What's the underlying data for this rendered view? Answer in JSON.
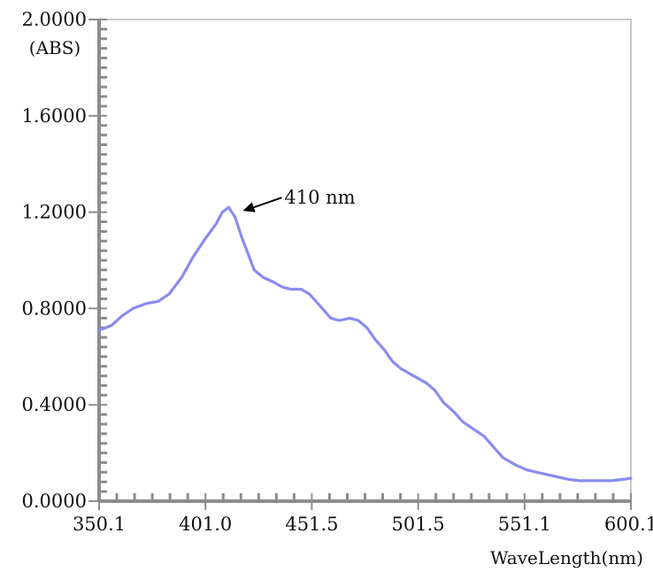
{
  "chart_data": {
    "type": "line",
    "title": "",
    "xlabel": "WaveLength(nm)",
    "ylabel": "(ABS)",
    "xlim": [
      350.1,
      600.1
    ],
    "ylim": [
      0.0,
      2.0
    ],
    "grid": false,
    "x_ticks": [
      "350.1",
      "401.0",
      "451.5",
      "501.5",
      "551.1",
      "600.1"
    ],
    "y_ticks": [
      "0.0000",
      "0.4000",
      "0.8000",
      "1.2000",
      "1.6000",
      "2.0000"
    ],
    "series": [
      {
        "name": "",
        "color": "#8a8cf0",
        "points": [
          [
            350.1,
            0.71
          ],
          [
            356,
            0.73
          ],
          [
            361,
            0.77
          ],
          [
            366,
            0.8
          ],
          [
            372,
            0.82
          ],
          [
            378,
            0.83
          ],
          [
            383,
            0.86
          ],
          [
            389,
            0.93
          ],
          [
            394,
            1.01
          ],
          [
            400,
            1.09
          ],
          [
            405,
            1.15
          ],
          [
            408,
            1.2
          ],
          [
            411,
            1.22
          ],
          [
            414,
            1.18
          ],
          [
            417,
            1.1
          ],
          [
            420,
            1.03
          ],
          [
            423,
            0.96
          ],
          [
            427,
            0.93
          ],
          [
            432,
            0.91
          ],
          [
            436,
            0.89
          ],
          [
            440,
            0.88
          ],
          [
            445,
            0.88
          ],
          [
            449,
            0.86
          ],
          [
            453,
            0.82
          ],
          [
            456,
            0.79
          ],
          [
            459,
            0.76
          ],
          [
            463,
            0.75
          ],
          [
            468,
            0.76
          ],
          [
            472,
            0.75
          ],
          [
            476,
            0.72
          ],
          [
            480,
            0.67
          ],
          [
            484,
            0.63
          ],
          [
            488,
            0.58
          ],
          [
            492,
            0.55
          ],
          [
            496,
            0.53
          ],
          [
            500,
            0.51
          ],
          [
            504,
            0.49
          ],
          [
            508,
            0.46
          ],
          [
            512,
            0.41
          ],
          [
            517,
            0.37
          ],
          [
            521,
            0.33
          ],
          [
            526,
            0.3
          ],
          [
            531,
            0.27
          ],
          [
            536,
            0.22
          ],
          [
            540,
            0.18
          ],
          [
            546,
            0.15
          ],
          [
            551,
            0.13
          ],
          [
            556,
            0.12
          ],
          [
            561,
            0.11
          ],
          [
            566,
            0.1
          ],
          [
            571,
            0.09
          ],
          [
            576,
            0.085
          ],
          [
            581,
            0.085
          ],
          [
            586,
            0.085
          ],
          [
            591,
            0.085
          ],
          [
            596,
            0.09
          ],
          [
            600.1,
            0.095
          ]
        ]
      }
    ],
    "annotations": [
      {
        "text": "410 nm",
        "x": 411,
        "y": 1.22
      }
    ]
  }
}
